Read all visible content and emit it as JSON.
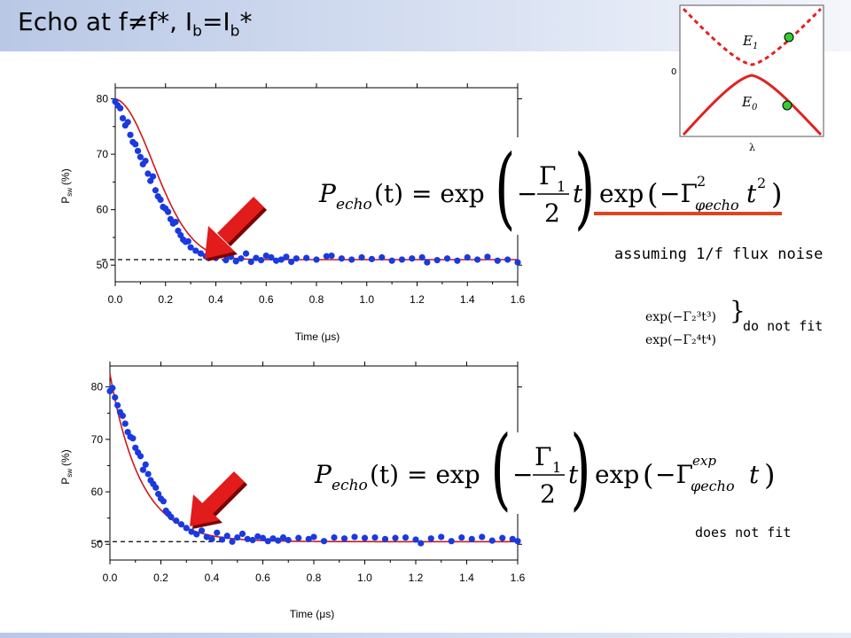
{
  "page": {
    "title_main": "Echo at f≠f*, I",
    "title_sub1": "b",
    "title_mid": "=I",
    "title_sub2": "b",
    "title_end": "*"
  },
  "colors": {
    "points": "#1a3ae0",
    "fit": "#cc1a1a",
    "arrow": "#e21b1b",
    "underline": "#e0431e",
    "upper_level": "#e22222",
    "marker": "#33cc33"
  },
  "annotations": {
    "flux_noise": "assuming 1/f flux noise",
    "do_not_fit": "do not fit",
    "does_not_fit": "does not fit"
  },
  "equations": {
    "top": {
      "lhs_P": "P",
      "lhs_sub": "echo",
      "lhs_arg": "(t) = exp",
      "gamma1": "Γ",
      "gamma1_sub": "1",
      "denominator": "2",
      "t": "t",
      "exp2": "exp",
      "gamma_phi": "−Γ",
      "gamma_phi_sup": "2",
      "gamma_phi_sub": "φecho",
      "t2": "t",
      "t2_sup": "2"
    },
    "bottom": {
      "lhs_P": "P",
      "lhs_sub": "echo",
      "lhs_arg": "(t) = exp",
      "gamma1": "Γ",
      "gamma1_sub": "1",
      "denominator": "2",
      "t": "t",
      "exp2": "exp",
      "gamma_phi": "−Γ",
      "gamma_phi_sup": "exp",
      "gamma_phi_sub": "φecho",
      "t_end": "t"
    },
    "alt1": "exp(−Γ₂³t³)",
    "alt2": "exp(−Γ₂⁴t⁴)"
  },
  "inset": {
    "e1": "E",
    "e1_sub": "1",
    "e0": "E",
    "e0_sub": "0",
    "zero": "0",
    "lambda": "λ"
  },
  "chart_data": [
    {
      "type": "scatter",
      "title": "",
      "xlabel": "Time (μs)",
      "ylabel": "P_sw (%)",
      "ylabel_main": "P",
      "ylabel_sub": "sw",
      "ylabel_unit": "(%)",
      "xlabel_text": "Time (",
      "xlabel_mu": "μ",
      "xlabel_end": "s)",
      "xlim": [
        0.0,
        1.6
      ],
      "ylim": [
        47,
        82
      ],
      "xticks": [
        "0.0",
        "0.2",
        "0.4",
        "0.6",
        "0.8",
        "1.0",
        "1.2",
        "1.4",
        "1.6"
      ],
      "yticks": [
        "50",
        "60",
        "70",
        "80"
      ],
      "baseline": 51,
      "fit": {
        "model": "exp(-Γ1 t/2) exp(-Γφ² t²)",
        "name": ""
      },
      "points": [
        [
          0.0,
          79.5
        ],
        [
          0.01,
          78.8
        ],
        [
          0.02,
          78.3
        ],
        [
          0.03,
          76.5
        ],
        [
          0.04,
          75.2
        ],
        [
          0.05,
          75.8
        ],
        [
          0.06,
          73.5
        ],
        [
          0.07,
          72.2
        ],
        [
          0.08,
          71.8
        ],
        [
          0.09,
          70.6
        ],
        [
          0.1,
          69.5
        ],
        [
          0.11,
          68.2
        ],
        [
          0.12,
          68.8
        ],
        [
          0.13,
          66.5
        ],
        [
          0.14,
          65.2
        ],
        [
          0.15,
          66.0
        ],
        [
          0.16,
          63.5
        ],
        [
          0.17,
          62.4
        ],
        [
          0.18,
          61.8
        ],
        [
          0.19,
          60.5
        ],
        [
          0.2,
          60.2
        ],
        [
          0.21,
          59.6
        ],
        [
          0.22,
          58.3
        ],
        [
          0.23,
          57.5
        ],
        [
          0.24,
          57.8
        ],
        [
          0.25,
          56.2
        ],
        [
          0.26,
          55.4
        ],
        [
          0.27,
          54.6
        ],
        [
          0.28,
          54.2
        ],
        [
          0.29,
          54.3
        ],
        [
          0.3,
          53.2
        ],
        [
          0.32,
          52.6
        ],
        [
          0.34,
          52.1
        ],
        [
          0.36,
          51.6
        ],
        [
          0.38,
          52.0
        ],
        [
          0.4,
          51.3
        ],
        [
          0.42,
          51.8
        ],
        [
          0.44,
          50.9
        ],
        [
          0.46,
          51.5
        ],
        [
          0.48,
          50.7
        ],
        [
          0.5,
          51.2
        ],
        [
          0.52,
          52.1
        ],
        [
          0.54,
          50.6
        ],
        [
          0.56,
          51.3
        ],
        [
          0.58,
          50.9
        ],
        [
          0.6,
          51.7
        ],
        [
          0.62,
          51.4
        ],
        [
          0.64,
          50.8
        ],
        [
          0.66,
          51.0
        ],
        [
          0.68,
          51.5
        ],
        [
          0.7,
          50.6
        ],
        [
          0.72,
          51.2
        ],
        [
          0.76,
          51.3
        ],
        [
          0.8,
          51.0
        ],
        [
          0.84,
          51.6
        ],
        [
          0.86,
          51.7
        ],
        [
          0.9,
          51.2
        ],
        [
          0.94,
          51.0
        ],
        [
          0.98,
          51.4
        ],
        [
          1.02,
          51.1
        ],
        [
          1.06,
          51.4
        ],
        [
          1.1,
          50.8
        ],
        [
          1.14,
          51.0
        ],
        [
          1.18,
          51.2
        ],
        [
          1.22,
          51.4
        ],
        [
          1.24,
          50.5
        ],
        [
          1.28,
          50.9
        ],
        [
          1.32,
          51.2
        ],
        [
          1.36,
          50.8
        ],
        [
          1.4,
          51.4
        ],
        [
          1.44,
          51.0
        ],
        [
          1.48,
          51.5
        ],
        [
          1.52,
          50.8
        ],
        [
          1.56,
          51.0
        ],
        [
          1.6,
          50.5
        ]
      ]
    },
    {
      "type": "scatter",
      "title": "",
      "xlabel": "Time (μs)",
      "ylabel": "P_sw (%)",
      "ylabel_main": "P",
      "ylabel_sub": "sw",
      "ylabel_unit": "(%)",
      "xlabel_text": "Time (",
      "xlabel_mu": "μ",
      "xlabel_end": "s)",
      "xlim": [
        0.0,
        1.6
      ],
      "ylim": [
        47,
        84
      ],
      "xticks": [
        "0.0",
        "0.2",
        "0.4",
        "0.6",
        "0.8",
        "1.0",
        "1.2",
        "1.4",
        "1.6"
      ],
      "yticks": [
        "50",
        "60",
        "70",
        "80"
      ],
      "baseline": 50.5,
      "fit": {
        "model": "exp(-Γ1 t/2) exp(-Γφ t)",
        "name": ""
      },
      "points": [
        [
          0.0,
          79.2
        ],
        [
          0.01,
          79.8
        ],
        [
          0.02,
          78.0
        ],
        [
          0.03,
          76.5
        ],
        [
          0.04,
          75.2
        ],
        [
          0.05,
          74.5
        ],
        [
          0.06,
          73.0
        ],
        [
          0.07,
          71.4
        ],
        [
          0.08,
          70.5
        ],
        [
          0.09,
          70.2
        ],
        [
          0.1,
          68.4
        ],
        [
          0.11,
          67.5
        ],
        [
          0.12,
          66.8
        ],
        [
          0.13,
          64.2
        ],
        [
          0.14,
          65.2
        ],
        [
          0.15,
          63.4
        ],
        [
          0.16,
          62.2
        ],
        [
          0.17,
          61.5
        ],
        [
          0.18,
          60.8
        ],
        [
          0.19,
          59.6
        ],
        [
          0.2,
          58.7
        ],
        [
          0.21,
          58.2
        ],
        [
          0.22,
          56.4
        ],
        [
          0.23,
          55.8
        ],
        [
          0.24,
          55.2
        ],
        [
          0.26,
          54.5
        ],
        [
          0.28,
          53.8
        ],
        [
          0.3,
          53.1
        ],
        [
          0.32,
          52.4
        ],
        [
          0.34,
          51.9
        ],
        [
          0.36,
          52.6
        ],
        [
          0.38,
          51.4
        ],
        [
          0.4,
          51.0
        ],
        [
          0.42,
          52.2
        ],
        [
          0.44,
          50.9
        ],
        [
          0.46,
          51.6
        ],
        [
          0.48,
          50.5
        ],
        [
          0.5,
          51.3
        ],
        [
          0.52,
          52.0
        ],
        [
          0.54,
          51.0
        ],
        [
          0.56,
          50.8
        ],
        [
          0.58,
          51.5
        ],
        [
          0.6,
          51.2
        ],
        [
          0.62,
          50.6
        ],
        [
          0.64,
          51.1
        ],
        [
          0.66,
          50.7
        ],
        [
          0.68,
          51.3
        ],
        [
          0.7,
          50.8
        ],
        [
          0.74,
          51.2
        ],
        [
          0.78,
          51.0
        ],
        [
          0.8,
          51.4
        ],
        [
          0.84,
          50.6
        ],
        [
          0.88,
          51.3
        ],
        [
          0.92,
          51.1
        ],
        [
          0.96,
          51.4
        ],
        [
          1.0,
          51.2
        ],
        [
          1.04,
          51.3
        ],
        [
          1.08,
          51.0
        ],
        [
          1.12,
          51.2
        ],
        [
          1.16,
          51.3
        ],
        [
          1.2,
          50.9
        ],
        [
          1.22,
          50.2
        ],
        [
          1.26,
          51.1
        ],
        [
          1.3,
          51.4
        ],
        [
          1.34,
          50.6
        ],
        [
          1.38,
          51.3
        ],
        [
          1.42,
          51.0
        ],
        [
          1.46,
          51.4
        ],
        [
          1.5,
          50.7
        ],
        [
          1.54,
          51.2
        ],
        [
          1.58,
          51.0
        ],
        [
          1.6,
          50.6
        ]
      ]
    }
  ]
}
